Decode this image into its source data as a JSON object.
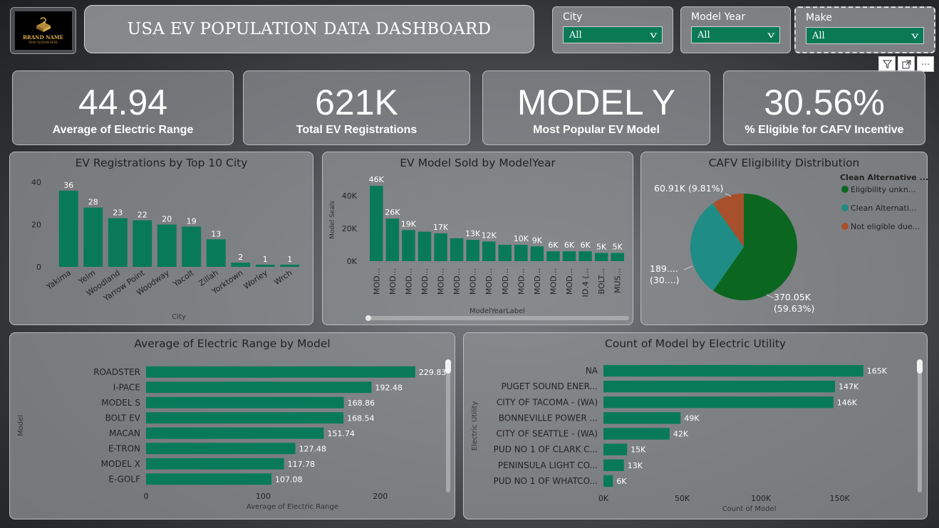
{
  "header": {
    "logo_text": "BRAND NAME",
    "logo_sub": "YOUR SLOGAN HERE",
    "title": "USA EV POPULATION DATA DASHBOARD"
  },
  "slicers": [
    {
      "label": "City",
      "value": "All"
    },
    {
      "label": "Model Year",
      "value": "All"
    },
    {
      "label": "Make",
      "value": "All"
    }
  ],
  "toolbar": {
    "more": "⋯"
  },
  "kpis": [
    {
      "value": "44.94",
      "label": "Average of Electric Range"
    },
    {
      "value": "621K",
      "label": "Total EV Registrations"
    },
    {
      "value": "MODEL Y",
      "label": "Most Popular EV Model"
    },
    {
      "value": "30.56%",
      "label": "% Eligible for CAFV Incentive"
    }
  ],
  "colors": {
    "bar": "#087a5a",
    "pie_dark": "#0b6620",
    "pie_teal": "#1f8c85",
    "pie_rust": "#a84f2b"
  },
  "chart_data": [
    {
      "type": "bar",
      "title": "EV Registrations by Top 10 City",
      "xlabel": "City",
      "ylabel": "",
      "categories": [
        "Yakima",
        "Yelm",
        "Woodland",
        "Yarrow Point",
        "Woodway",
        "Yacolt",
        "Zillah",
        "Yorktown",
        "Worley",
        "Wrch"
      ],
      "values": [
        36,
        28,
        23,
        22,
        20,
        19,
        13,
        2,
        1,
        1
      ],
      "data_labels": [
        "36",
        "28",
        "23",
        "22",
        "20",
        "19",
        "13",
        "2",
        "1",
        "1"
      ],
      "yticks": [
        "0",
        "20",
        "40"
      ],
      "ylim": [
        0,
        40
      ]
    },
    {
      "type": "bar",
      "title": "EV Model Sold by ModelYear",
      "xlabel": "ModelYearLabel",
      "ylabel": "Model Seals",
      "categories": [
        "MOD...",
        "MOD...",
        "MOD...",
        "MOD...",
        "MOD...",
        "MOD...",
        "MOD...",
        "MOD...",
        "MOD...",
        "MOD...",
        "MOD...",
        "MOD...",
        "MOD...",
        "ID.4 (...",
        "BOLT...",
        "MUS..."
      ],
      "values": [
        46000,
        26000,
        19000,
        18000,
        17000,
        14000,
        13000,
        12000,
        10000,
        10000,
        9000,
        6000,
        6000,
        6000,
        5000,
        5000
      ],
      "data_labels": [
        "46K",
        "26K",
        "19K",
        "",
        "17K",
        "",
        "13K",
        "12K",
        "",
        "10K",
        "9K",
        "6K",
        "6K",
        "6K",
        "5K",
        "5K"
      ],
      "yticks": [
        "0K",
        "20K",
        "40K"
      ],
      "ylim": [
        0,
        50000
      ]
    },
    {
      "type": "pie",
      "title": "CAFV Eligibility Distribution",
      "legend_title": "Clean Alternative ...",
      "legend": [
        "Eligibility unkn...",
        "Clean Alternati...",
        "Not eligible due..."
      ],
      "values": [
        370050,
        189000,
        60910
      ],
      "data_labels": [
        [
          "370.05K",
          "(59.63%)"
        ],
        [
          "189....",
          "(30....)"
        ],
        [
          "60.91K (9.81%)"
        ]
      ],
      "legend_placement": "right"
    },
    {
      "type": "bar",
      "orientation": "horizontal",
      "title": "Average of Electric Range by Model",
      "xlabel": "Average of Electric Range",
      "ylabel": "Model",
      "categories": [
        "ROADSTER",
        "I-PACE",
        "MODEL S",
        "BOLT EV",
        "MACAN",
        "E-TRON",
        "MODEL X",
        "E-GOLF"
      ],
      "values": [
        229.83,
        192.48,
        168.86,
        168.54,
        151.74,
        127.48,
        117.78,
        107.08
      ],
      "data_labels": [
        "229.83",
        "192.48",
        "168.86",
        "168.54",
        "151.74",
        "127.48",
        "117.78",
        "107.08"
      ],
      "xticks": [
        "0",
        "100",
        "200"
      ],
      "xlim": [
        0,
        250
      ]
    },
    {
      "type": "bar",
      "orientation": "horizontal",
      "title": "Count of Model by Electric Utility",
      "xlabel": "Count of Model",
      "ylabel": "Electric Utility",
      "categories": [
        "NA",
        "PUGET SOUND ENER...",
        "CITY OF TACOMA - (WA)",
        "BONNEVILLE POWER ...",
        "CITY OF SEATTLE - (WA)",
        "PUD NO 1 OF CLARK C...",
        "PENINSULA LIGHT CO...",
        "PUD NO 1 OF WHATCO..."
      ],
      "values": [
        165000,
        147000,
        146000,
        49000,
        42000,
        15000,
        13000,
        6000
      ],
      "data_labels": [
        "165K",
        "147K",
        "146K",
        "49K",
        "42K",
        "15K",
        "13K",
        "6K"
      ],
      "xticks": [
        "0K",
        "50K",
        "100K",
        "150K"
      ],
      "xlim": [
        0,
        185000
      ]
    }
  ]
}
